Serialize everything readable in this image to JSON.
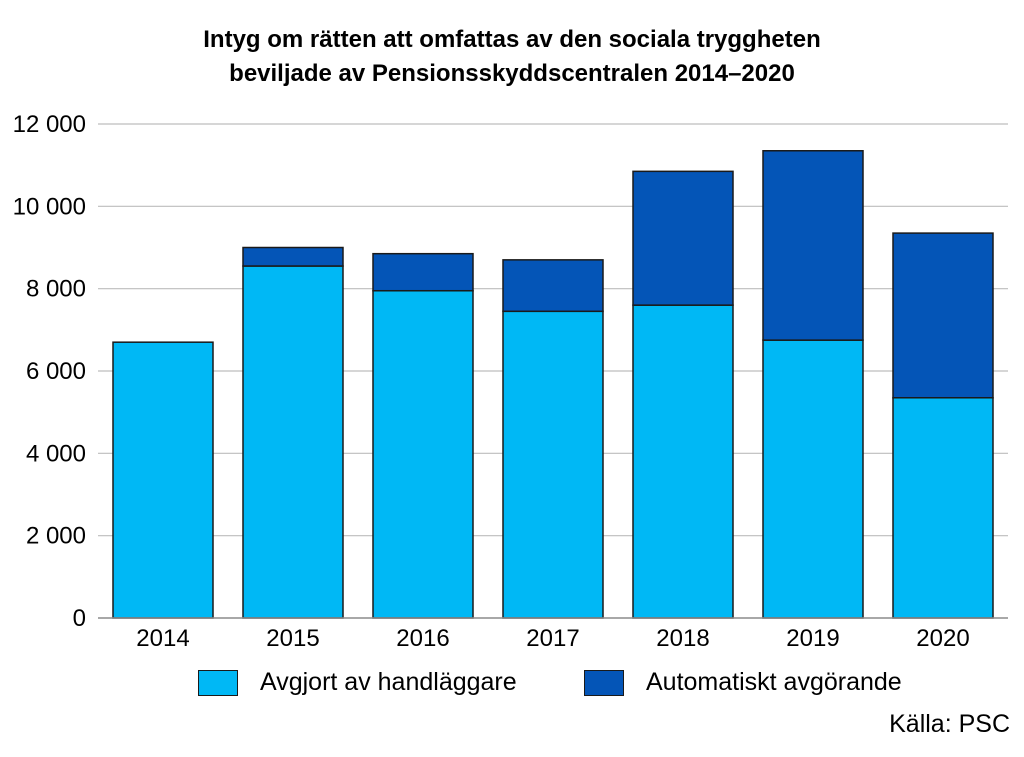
{
  "chart_data": {
    "type": "bar",
    "stacked": true,
    "title_lines": [
      "Intyg om rätten att omfattas av den sociala tryggheten",
      "beviljade av Pensionsskyddscentralen 2014–2020"
    ],
    "categories": [
      "2014",
      "2015",
      "2016",
      "2017",
      "2018",
      "2019",
      "2020"
    ],
    "series": [
      {
        "name": "Avgjort av handläggare",
        "color": "#00B8F5",
        "values": [
          6700,
          8550,
          7950,
          7450,
          7600,
          6750,
          5350
        ]
      },
      {
        "name": "Automatiskt avgörande",
        "color": "#0455B7",
        "values": [
          0,
          450,
          900,
          1250,
          3250,
          4600,
          4000
        ]
      }
    ],
    "ylim": [
      0,
      12000
    ],
    "yticks": [
      0,
      2000,
      4000,
      6000,
      8000,
      10000,
      12000
    ],
    "ytick_labels": [
      "0",
      "2 000",
      "4 000",
      "6 000",
      "8 000",
      "10 000",
      "12 000"
    ],
    "grid": true,
    "legend_position": "bottom",
    "source": "Källa: PSC"
  }
}
